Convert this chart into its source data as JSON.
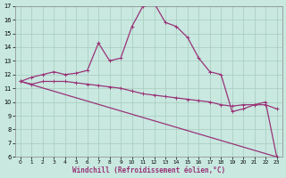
{
  "xlabel": "Windchill (Refroidissement éolien,°C)",
  "background_color": "#c8e8e0",
  "grid_color": "#a8ccbc",
  "line_color": "#993377",
  "xlim_min": -0.5,
  "xlim_max": 23.5,
  "ylim_min": 6,
  "ylim_max": 17,
  "yticks": [
    6,
    7,
    8,
    9,
    10,
    11,
    12,
    13,
    14,
    15,
    16,
    17
  ],
  "xticks": [
    0,
    1,
    2,
    3,
    4,
    5,
    6,
    7,
    8,
    9,
    10,
    11,
    12,
    13,
    14,
    15,
    16,
    17,
    18,
    19,
    20,
    21,
    22,
    23
  ],
  "line1_x": [
    0,
    23
  ],
  "line1_y": [
    11.5,
    6.0
  ],
  "line2_x": [
    0,
    1,
    2,
    3,
    4,
    5,
    6,
    7,
    8,
    9,
    10,
    11,
    12,
    13,
    14,
    15,
    16,
    17,
    18,
    19,
    20,
    21,
    22,
    23
  ],
  "line2_y": [
    11.5,
    11.3,
    11.5,
    11.5,
    11.5,
    11.4,
    11.3,
    11.2,
    11.1,
    11.0,
    10.8,
    10.6,
    10.5,
    10.4,
    10.3,
    10.2,
    10.1,
    10.0,
    9.8,
    9.7,
    9.8,
    9.8,
    9.8,
    9.5
  ],
  "line3_x": [
    0,
    1,
    2,
    3,
    4,
    5,
    6,
    7,
    8,
    9,
    10,
    11,
    12,
    13,
    14,
    15,
    16,
    17,
    18,
    19,
    20,
    21,
    22,
    23
  ],
  "line3_y": [
    11.5,
    11.8,
    12.0,
    12.2,
    12.0,
    12.1,
    12.3,
    14.3,
    13.0,
    13.2,
    15.5,
    17.0,
    17.2,
    15.8,
    15.5,
    14.7,
    13.2,
    12.2,
    12.0,
    9.3,
    9.5,
    9.8,
    10.0,
    6.0
  ]
}
